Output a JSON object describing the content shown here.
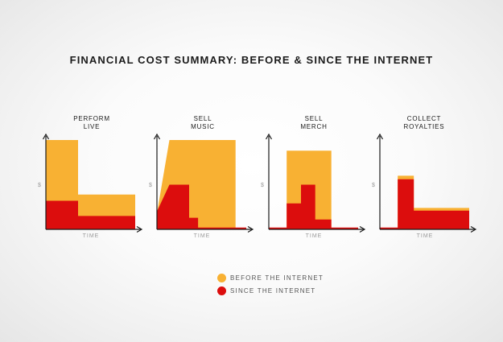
{
  "colors": {
    "before": "#f8b133",
    "since": "#dc0d0d",
    "axis": "#1a1a1a",
    "label": "#9a9a9a"
  },
  "chart_data": {
    "type": "area",
    "title": "FINANCIAL COST SUMMARY: BEFORE & SINCE THE INTERNET",
    "xlabel": "TIME",
    "ylabel": "$",
    "ylim": [
      0,
      100
    ],
    "legend": {
      "placement": "bottom-center",
      "entries": [
        "BEFORE THE INTERNET",
        "SINCE THE INTERNET"
      ]
    },
    "panels": [
      {
        "title": "PERFORM\nLIVE",
        "series": [
          {
            "name": "BEFORE THE INTERNET",
            "points": [
              [
                0,
                0
              ],
              [
                0,
                100
              ],
              [
                36,
                100
              ],
              [
                36,
                39
              ],
              [
                100,
                39
              ],
              [
                100,
                0
              ]
            ]
          },
          {
            "name": "SINCE THE INTERNET",
            "points": [
              [
                0,
                0
              ],
              [
                0,
                32
              ],
              [
                36,
                32
              ],
              [
                36,
                15
              ],
              [
                100,
                15
              ],
              [
                100,
                0
              ]
            ]
          }
        ]
      },
      {
        "title": "SELL\nMUSIC",
        "series": [
          {
            "name": "BEFORE THE INTERNET",
            "points": [
              [
                0,
                0
              ],
              [
                0,
                18
              ],
              [
                14,
                100
              ],
              [
                88,
                100
              ],
              [
                88,
                0
              ]
            ]
          },
          {
            "name": "SINCE THE INTERNET",
            "points": [
              [
                0,
                0
              ],
              [
                0,
                20
              ],
              [
                14,
                50
              ],
              [
                36,
                50
              ],
              [
                36,
                13
              ],
              [
                46,
                13
              ],
              [
                46,
                2
              ],
              [
                100,
                2
              ],
              [
                100,
                0
              ]
            ]
          }
        ]
      },
      {
        "title": "SELL\nMERCH",
        "series": [
          {
            "name": "BEFORE THE INTERNET",
            "points": [
              [
                20,
                0
              ],
              [
                20,
                88
              ],
              [
                70,
                88
              ],
              [
                70,
                0
              ]
            ]
          },
          {
            "name": "SINCE THE INTERNET",
            "points": [
              [
                0,
                0
              ],
              [
                0,
                2
              ],
              [
                20,
                2
              ],
              [
                20,
                29
              ],
              [
                36,
                29
              ],
              [
                36,
                50
              ],
              [
                52,
                50
              ],
              [
                52,
                11
              ],
              [
                70,
                11
              ],
              [
                70,
                2
              ],
              [
                100,
                2
              ],
              [
                100,
                0
              ]
            ]
          }
        ]
      },
      {
        "title": "COLLECT\nROYALTIES",
        "series": [
          {
            "name": "BEFORE THE INTERNET",
            "points": [
              [
                20,
                0
              ],
              [
                20,
                60
              ],
              [
                38,
                60
              ],
              [
                38,
                24
              ],
              [
                100,
                24
              ],
              [
                100,
                0
              ]
            ]
          },
          {
            "name": "SINCE THE INTERNET",
            "points": [
              [
                0,
                0
              ],
              [
                0,
                2
              ],
              [
                20,
                2
              ],
              [
                20,
                56
              ],
              [
                38,
                56
              ],
              [
                38,
                21
              ],
              [
                100,
                21
              ],
              [
                100,
                0
              ]
            ]
          }
        ]
      }
    ]
  }
}
